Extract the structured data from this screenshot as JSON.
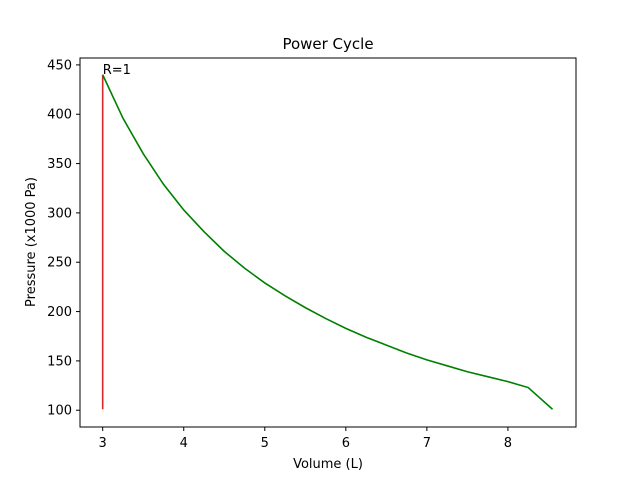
{
  "chart_data": {
    "type": "line",
    "title": "Power Cycle",
    "xlabel": "Volume (L)",
    "ylabel": "Pressure (x1000 Pa)",
    "xlim": [
      2.72,
      8.84
    ],
    "ylim": [
      83,
      457
    ],
    "xticks": [
      3,
      4,
      5,
      6,
      7,
      8
    ],
    "yticks": [
      100,
      150,
      200,
      250,
      300,
      350,
      400,
      450
    ],
    "grid": false,
    "series": [
      {
        "color": "#d62728",
        "x": [
          3,
          3
        ],
        "y": [
          101,
          440
        ]
      },
      {
        "color": "#008000",
        "x": [
          3.0,
          3.25,
          3.5,
          3.75,
          4.0,
          4.25,
          4.5,
          4.75,
          5.0,
          5.25,
          5.5,
          5.75,
          6.0,
          6.25,
          6.5,
          6.75,
          7.0,
          7.25,
          7.5,
          7.75,
          8.0,
          8.25,
          8.55
        ],
        "y": [
          440,
          396,
          360,
          329,
          303,
          281,
          261,
          244,
          229,
          216,
          204,
          193,
          183,
          174,
          166,
          158,
          151,
          145,
          139,
          134,
          129,
          123,
          101
        ]
      }
    ],
    "annotations": [
      {
        "text": "R=1",
        "x": 3.0,
        "y": 440
      }
    ]
  }
}
